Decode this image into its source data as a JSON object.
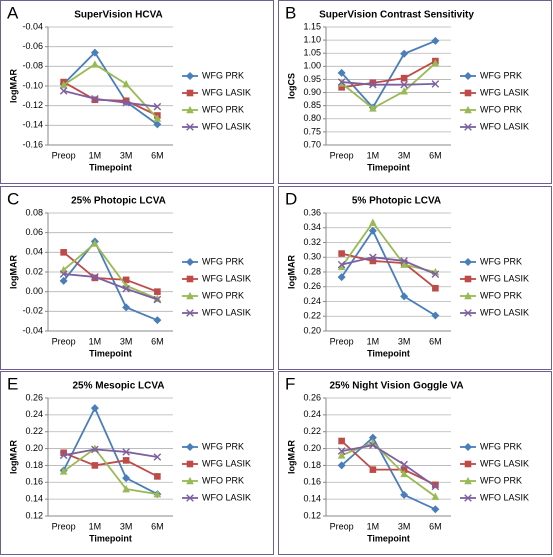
{
  "chart_data": [
    {
      "type": "line",
      "label": "A",
      "title": "SuperVision HCVA",
      "ylabel": "logMAR",
      "xlabel": "Timepoint",
      "categories": [
        "Preop",
        "1M",
        "3M",
        "6M"
      ],
      "ylim": [
        -0.16,
        -0.04
      ],
      "yticks": [
        -0.04,
        -0.06,
        -0.08,
        {
          "value": -0.1,
          "label": "-0.10"
        },
        -0.12,
        -0.14,
        -0.16
      ],
      "series": [
        {
          "name": "WFG PRK",
          "color": "#4a7ebb",
          "marker": "diamond",
          "values": [
            -0.098,
            -0.066,
            -0.116,
            -0.139
          ]
        },
        {
          "name": "WFG LASIK",
          "color": "#be4b48",
          "marker": "square",
          "values": [
            -0.096,
            -0.114,
            -0.115,
            -0.13
          ]
        },
        {
          "name": "WFO PRK",
          "color": "#98b954",
          "marker": "triangle",
          "values": [
            -0.099,
            -0.078,
            -0.098,
            -0.133
          ]
        },
        {
          "name": "WFO LASIK",
          "color": "#7d60a0",
          "marker": "x",
          "values": [
            -0.105,
            -0.113,
            -0.117,
            -0.121
          ]
        }
      ]
    },
    {
      "type": "line",
      "label": "B",
      "title": "SuperVision Contrast Sensitivity",
      "ylabel": "logCS",
      "xlabel": "Timepoint",
      "categories": [
        "Preop",
        "1M",
        "3M",
        "6M"
      ],
      "ylim": [
        0.7,
        1.15
      ],
      "yticks": [
        {
          "value": 0.7,
          "label": "0.70"
        },
        0.75,
        {
          "value": 0.8,
          "label": "0.80"
        },
        0.85,
        {
          "value": 0.9,
          "label": "0.90"
        },
        0.95,
        {
          "value": 1.0,
          "label": "1.00"
        },
        1.05,
        {
          "value": 1.1,
          "label": "1.10"
        },
        1.15
      ],
      "series": [
        {
          "name": "WFG PRK",
          "color": "#4a7ebb",
          "marker": "diamond",
          "values": [
            0.975,
            0.843,
            1.048,
            1.097
          ]
        },
        {
          "name": "WFG LASIK",
          "color": "#be4b48",
          "marker": "square",
          "values": [
            0.92,
            0.937,
            0.955,
            1.02
          ]
        },
        {
          "name": "WFO PRK",
          "color": "#98b954",
          "marker": "triangle",
          "values": [
            0.935,
            0.84,
            0.905,
            1.012
          ]
        },
        {
          "name": "WFO LASIK",
          "color": "#7d60a0",
          "marker": "x",
          "values": [
            0.94,
            0.93,
            0.93,
            0.933
          ]
        }
      ]
    },
    {
      "type": "line",
      "label": "C",
      "title": "25% Photopic LCVA",
      "ylabel": "logMAR",
      "xlabel": "Timepoint",
      "categories": [
        "Preop",
        "1M",
        "3M",
        "6M"
      ],
      "ylim": [
        -0.04,
        0.08
      ],
      "yticks": [
        -0.04,
        -0.02,
        {
          "value": 0,
          "label": "0.00"
        },
        0.02,
        0.04,
        0.06,
        0.08
      ],
      "series": [
        {
          "name": "WFG PRK",
          "color": "#4a7ebb",
          "marker": "diamond",
          "values": [
            0.011,
            0.051,
            -0.016,
            -0.029
          ]
        },
        {
          "name": "WFG LASIK",
          "color": "#be4b48",
          "marker": "square",
          "values": [
            0.04,
            0.014,
            0.012,
            0.0
          ]
        },
        {
          "name": "WFO PRK",
          "color": "#98b954",
          "marker": "triangle",
          "values": [
            0.022,
            0.049,
            0.006,
            -0.007
          ]
        },
        {
          "name": "WFO LASIK",
          "color": "#7d60a0",
          "marker": "x",
          "values": [
            0.018,
            0.015,
            0.003,
            -0.008
          ]
        }
      ]
    },
    {
      "type": "line",
      "label": "D",
      "title": "5% Photopic LCVA",
      "ylabel": "logMAR",
      "xlabel": "Timepoint",
      "categories": [
        "Preop",
        "1M",
        "3M",
        "6M"
      ],
      "ylim": [
        0.2,
        0.36
      ],
      "yticks": [
        {
          "value": 0.2,
          "label": "0.20"
        },
        0.22,
        0.24,
        0.26,
        0.28,
        {
          "value": 0.3,
          "label": "0.30"
        },
        0.32,
        0.34,
        0.36
      ],
      "series": [
        {
          "name": "WFG PRK",
          "color": "#4a7ebb",
          "marker": "diamond",
          "values": [
            0.273,
            0.336,
            0.247,
            0.221
          ]
        },
        {
          "name": "WFG LASIK",
          "color": "#be4b48",
          "marker": "square",
          "values": [
            0.305,
            0.295,
            0.292,
            0.258
          ]
        },
        {
          "name": "WFO PRK",
          "color": "#98b954",
          "marker": "triangle",
          "values": [
            0.287,
            0.347,
            0.29,
            0.28
          ]
        },
        {
          "name": "WFO LASIK",
          "color": "#7d60a0",
          "marker": "x",
          "values": [
            0.29,
            0.3,
            0.295,
            0.277
          ]
        }
      ]
    },
    {
      "type": "line",
      "label": "E",
      "title": "25% Mesopic LCVA",
      "ylabel": "logMAR",
      "xlabel": "Timepoint",
      "categories": [
        "Preop",
        "1M",
        "3M",
        "6M"
      ],
      "ylim": [
        0.12,
        0.26
      ],
      "yticks": [
        0.12,
        0.14,
        0.16,
        0.18,
        {
          "value": 0.2,
          "label": "0.20"
        },
        0.22,
        0.24,
        0.26
      ],
      "series": [
        {
          "name": "WFG PRK",
          "color": "#4a7ebb",
          "marker": "diamond",
          "values": [
            0.174,
            0.248,
            0.165,
            0.146
          ]
        },
        {
          "name": "WFG LASIK",
          "color": "#be4b48",
          "marker": "square",
          "values": [
            0.195,
            0.18,
            0.186,
            0.167
          ]
        },
        {
          "name": "WFO PRK",
          "color": "#98b954",
          "marker": "triangle",
          "values": [
            0.173,
            0.2,
            0.152,
            0.146
          ]
        },
        {
          "name": "WFO LASIK",
          "color": "#7d60a0",
          "marker": "x",
          "values": [
            0.192,
            0.199,
            0.196,
            0.19
          ]
        }
      ]
    },
    {
      "type": "line",
      "label": "F",
      "title": "25% Night Vision Goggle VA",
      "ylabel": "logMAR",
      "xlabel": "Timepoint",
      "categories": [
        "Preop",
        "1M",
        "3M",
        "6M"
      ],
      "ylim": [
        0.12,
        0.26
      ],
      "yticks": [
        0.12,
        0.14,
        0.16,
        0.18,
        {
          "value": 0.2,
          "label": "0.20"
        },
        0.22,
        0.24,
        0.26
      ],
      "series": [
        {
          "name": "WFG PRK",
          "color": "#4a7ebb",
          "marker": "diamond",
          "values": [
            0.18,
            0.213,
            0.145,
            0.128
          ]
        },
        {
          "name": "WFG LASIK",
          "color": "#be4b48",
          "marker": "square",
          "values": [
            0.209,
            0.175,
            0.175,
            0.157
          ]
        },
        {
          "name": "WFO PRK",
          "color": "#98b954",
          "marker": "triangle",
          "values": [
            0.192,
            0.207,
            0.17,
            0.143
          ]
        },
        {
          "name": "WFO LASIK",
          "color": "#7d60a0",
          "marker": "x",
          "values": [
            0.197,
            0.204,
            0.181,
            0.155
          ]
        }
      ]
    }
  ]
}
